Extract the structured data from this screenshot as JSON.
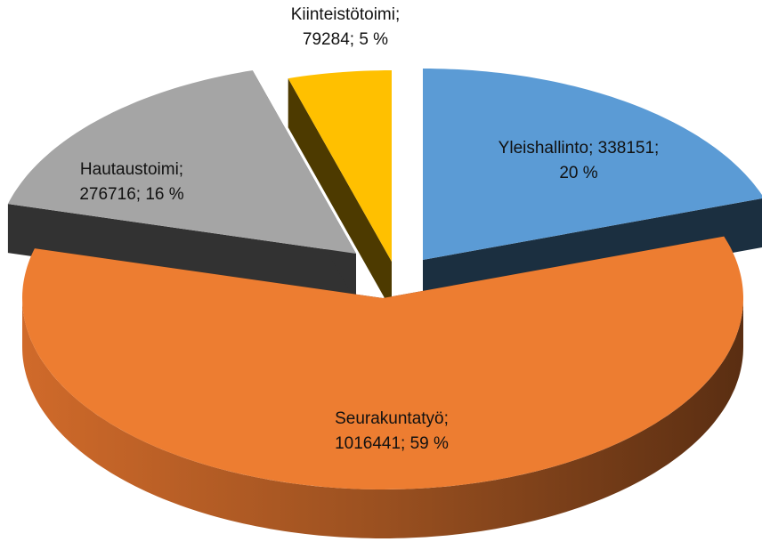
{
  "chart_data": {
    "type": "pie3d",
    "values": [
      338151,
      1016441,
      276716,
      79284
    ],
    "value_labels": [
      [
        "Yleishallinto; 338151;",
        "20 %"
      ],
      [
        "Seurakuntatyö;",
        "1016441; 59 %"
      ],
      [
        "Hautaustoimi;",
        "276716; 16 %"
      ],
      [
        "Kiinteistötoimi;",
        "79284; 5 %"
      ]
    ],
    "colors": [
      "#5b9bd5",
      "#ed7d31",
      "#a5a5a5",
      "#ffc000"
    ]
  }
}
